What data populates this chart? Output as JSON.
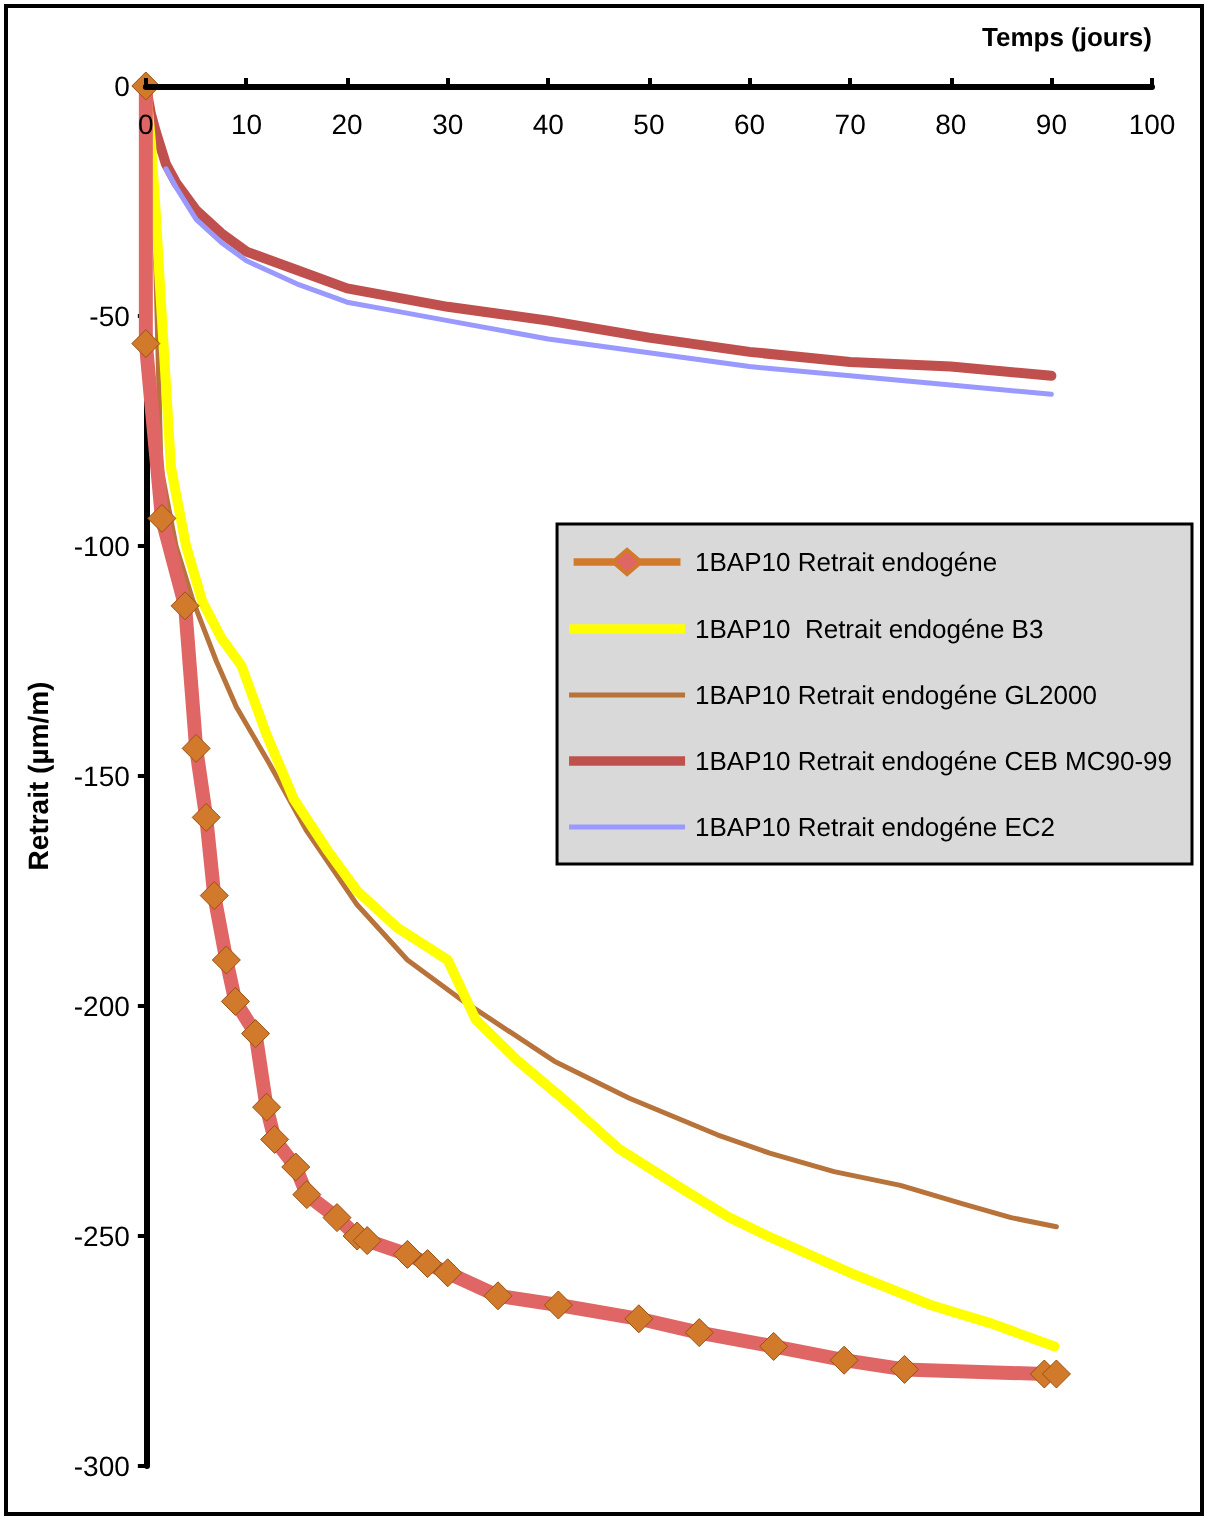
{
  "chart_data": {
    "type": "line",
    "xlabel": "Temps (jours)",
    "ylabel": "Retrait (µm/m)",
    "xlim": [
      0,
      100
    ],
    "xticks": [
      0,
      10,
      20,
      30,
      40,
      50,
      60,
      70,
      80,
      90,
      100
    ],
    "ylim": [
      -300,
      0
    ],
    "yticks": [
      -300,
      -250,
      -200,
      -150,
      -100,
      -50,
      0
    ],
    "grid": false,
    "legend": "right",
    "line_style": "solid",
    "series": [
      {
        "name": "1BAP10 Retrait endogéne",
        "color": "#e06666",
        "marker": "diamond",
        "x": [
          0,
          0,
          1.6,
          3.9,
          5,
          6,
          6.8,
          8,
          8.9,
          10.9,
          12,
          12.8,
          14.9,
          16,
          19,
          21,
          22,
          26,
          28,
          30,
          35,
          41,
          49,
          55,
          62.4,
          69.4,
          75.4,
          89.3,
          90.5
        ],
        "values": [
          0,
          -56,
          -94,
          -113,
          -144,
          -159,
          -176,
          -190,
          -199,
          -206,
          -222,
          -229,
          -235,
          -241,
          -246,
          -250,
          -251,
          -254,
          -256,
          -258,
          -263,
          -265,
          -268,
          -271,
          -274,
          -277,
          -279,
          -280,
          -280
        ]
      },
      {
        "name": "1BAP10  Retrait endogéne B3",
        "color": "#ffff00",
        "marker": "none",
        "x": [
          0,
          0.5,
          1,
          1.5,
          2.5,
          4,
          5.6,
          7.5,
          9.5,
          12,
          14.7,
          18,
          21,
          25,
          30,
          32.8,
          37,
          41.9,
          47,
          53.5,
          58,
          61.8,
          70,
          78,
          84,
          90.3
        ],
        "values": [
          0,
          -12,
          -28,
          -47,
          -83,
          -100,
          -112,
          -120,
          -126,
          -141,
          -155,
          -166,
          -175,
          -183,
          -190,
          -203,
          -212,
          -221,
          -231,
          -240,
          -246,
          -250,
          -258,
          -265,
          -269,
          -274
        ]
      },
      {
        "name": "1BAP10 Retrait endogéne GL2000",
        "color": "#b8733a",
        "marker": "none",
        "x": [
          0,
          0.5,
          1,
          1.5,
          3,
          4.7,
          7,
          9,
          12.2,
          16,
          21,
          26,
          31.6,
          40.6,
          48,
          56.8,
          62,
          68.4,
          75,
          81.2,
          86,
          90.5
        ],
        "values": [
          0,
          -15,
          -40,
          -83,
          -100,
          -112,
          -125,
          -135,
          -147,
          -162,
          -178,
          -190,
          -199,
          -212,
          -220,
          -228,
          -232,
          -236,
          -239,
          -243,
          -246,
          -248
        ]
      },
      {
        "name": "1BAP10 Retrait endogéne CEB MC90-99",
        "color": "#c0504d",
        "marker": "none",
        "x": [
          0,
          0.5,
          1,
          2,
          3,
          5,
          7.5,
          10,
          15,
          20,
          25,
          30,
          40,
          50,
          60,
          70,
          80,
          90
        ],
        "values": [
          0,
          -6,
          -10,
          -17,
          -21,
          -27,
          -32,
          -36,
          -40,
          -44,
          -46,
          -48,
          -51,
          -54.7,
          -57.8,
          -60,
          -61,
          -63
        ]
      },
      {
        "name": "1BAP10 Retrait endogéne EC2",
        "color": "#9999ff",
        "marker": "none",
        "x": [
          2,
          3,
          5,
          7.5,
          10,
          15,
          20,
          25,
          30,
          40,
          50,
          60,
          70,
          80,
          90
        ],
        "values": [
          -18,
          -22,
          -29,
          -34,
          -38,
          -43,
          -47,
          -49,
          -51,
          -55,
          -58,
          -61,
          -63,
          -65,
          -67
        ]
      }
    ]
  }
}
